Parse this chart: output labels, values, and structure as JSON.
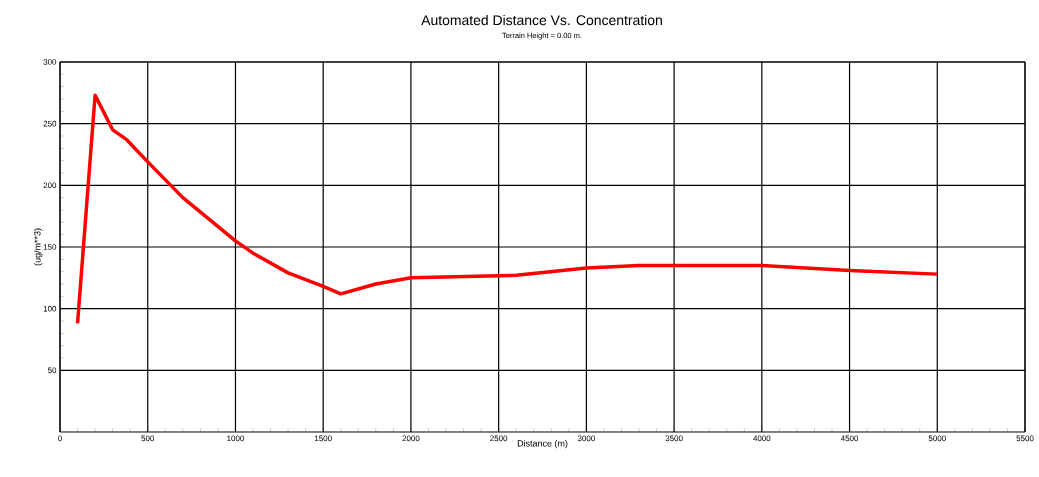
{
  "chart_data": {
    "type": "line",
    "title": "Automated Distance Vs. Concentration",
    "subtitle": "Terrain Height = 0.00 m.",
    "xlabel": "Distance (m)",
    "ylabel": "(ug/m**3)",
    "x": [
      100,
      200,
      300,
      380,
      500,
      700,
      1000,
      1100,
      1300,
      1500,
      1600,
      1800,
      2000,
      2600,
      3000,
      3300,
      4000,
      4500,
      5000
    ],
    "values": [
      88,
      273,
      245,
      237,
      219,
      190,
      155,
      145,
      129,
      118,
      112,
      120,
      125,
      127,
      133,
      135,
      135,
      131,
      128
    ],
    "color": "#ff0000",
    "xlim": [
      0,
      5500
    ],
    "ylim": [
      0,
      300
    ],
    "xticks": [
      0,
      500,
      1000,
      1500,
      2000,
      2500,
      3000,
      3500,
      4000,
      4500,
      5000,
      5500
    ],
    "yticks": [
      50,
      100,
      150,
      200,
      250,
      300
    ],
    "grid": true
  }
}
